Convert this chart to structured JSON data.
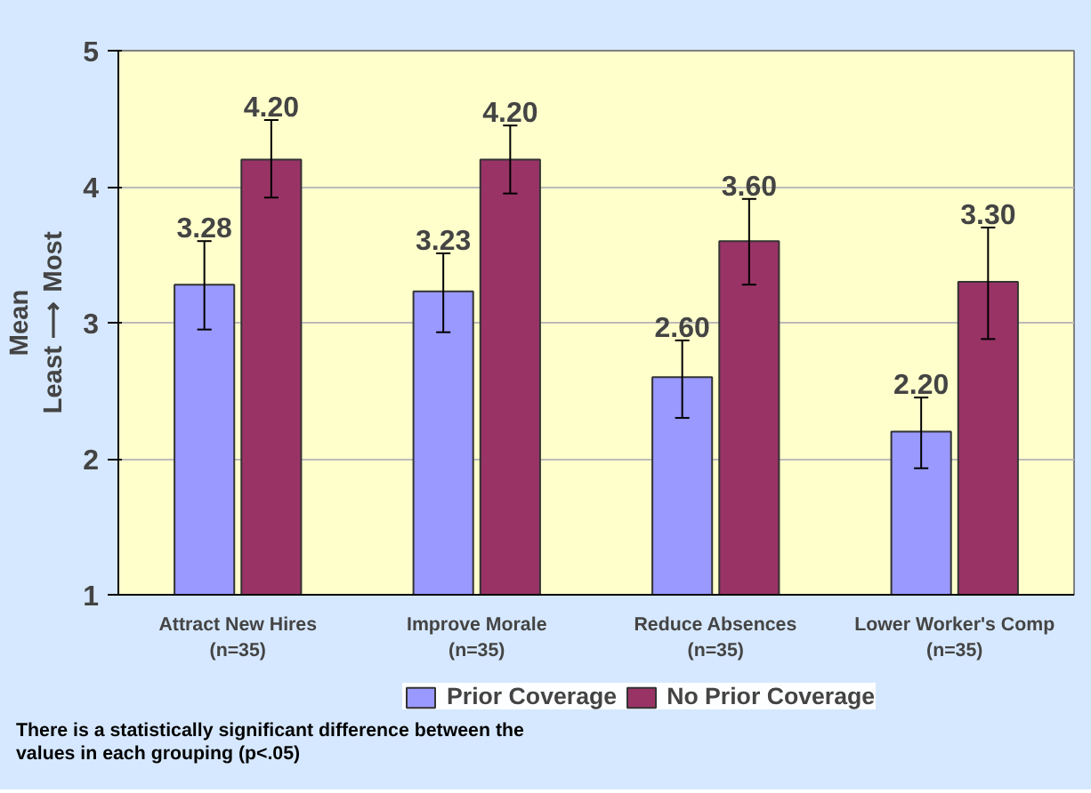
{
  "chart_data": {
    "type": "bar",
    "ylabel": "Mean\nLeast ⟶ Most",
    "categories": [
      "Attract New Hires\n(n=35)",
      "Improve Morale\n(n=35)",
      "Reduce Absences\n(n=35)",
      "Lower Worker's Comp\n(n=35)"
    ],
    "series": [
      {
        "name": "Prior Coverage",
        "color": "#9999ff",
        "values": [
          3.28,
          3.23,
          2.6,
          2.2
        ],
        "value_labels": [
          "3.28",
          "3.23",
          "2.60",
          "2.20"
        ],
        "errors": [
          [
            2.95,
            3.6
          ],
          [
            2.93,
            3.51
          ],
          [
            2.3,
            2.87
          ],
          [
            1.93,
            2.45
          ]
        ]
      },
      {
        "name": "No Prior Coverage",
        "color": "#993366",
        "values": [
          4.2,
          4.2,
          3.6,
          3.3
        ],
        "value_labels": [
          "4.20",
          "4.20",
          "3.60",
          "3.30"
        ],
        "errors": [
          [
            3.92,
            4.49
          ],
          [
            3.95,
            4.45
          ],
          [
            3.28,
            3.91
          ],
          [
            2.88,
            3.7
          ]
        ]
      }
    ],
    "ylim": [
      1,
      5
    ],
    "yticks": [
      1,
      2,
      3,
      4,
      5
    ],
    "grid": "y",
    "legend": "bottom",
    "annotations": [
      "There is a statistically significant difference between the values in each grouping (p<.05)"
    ]
  }
}
